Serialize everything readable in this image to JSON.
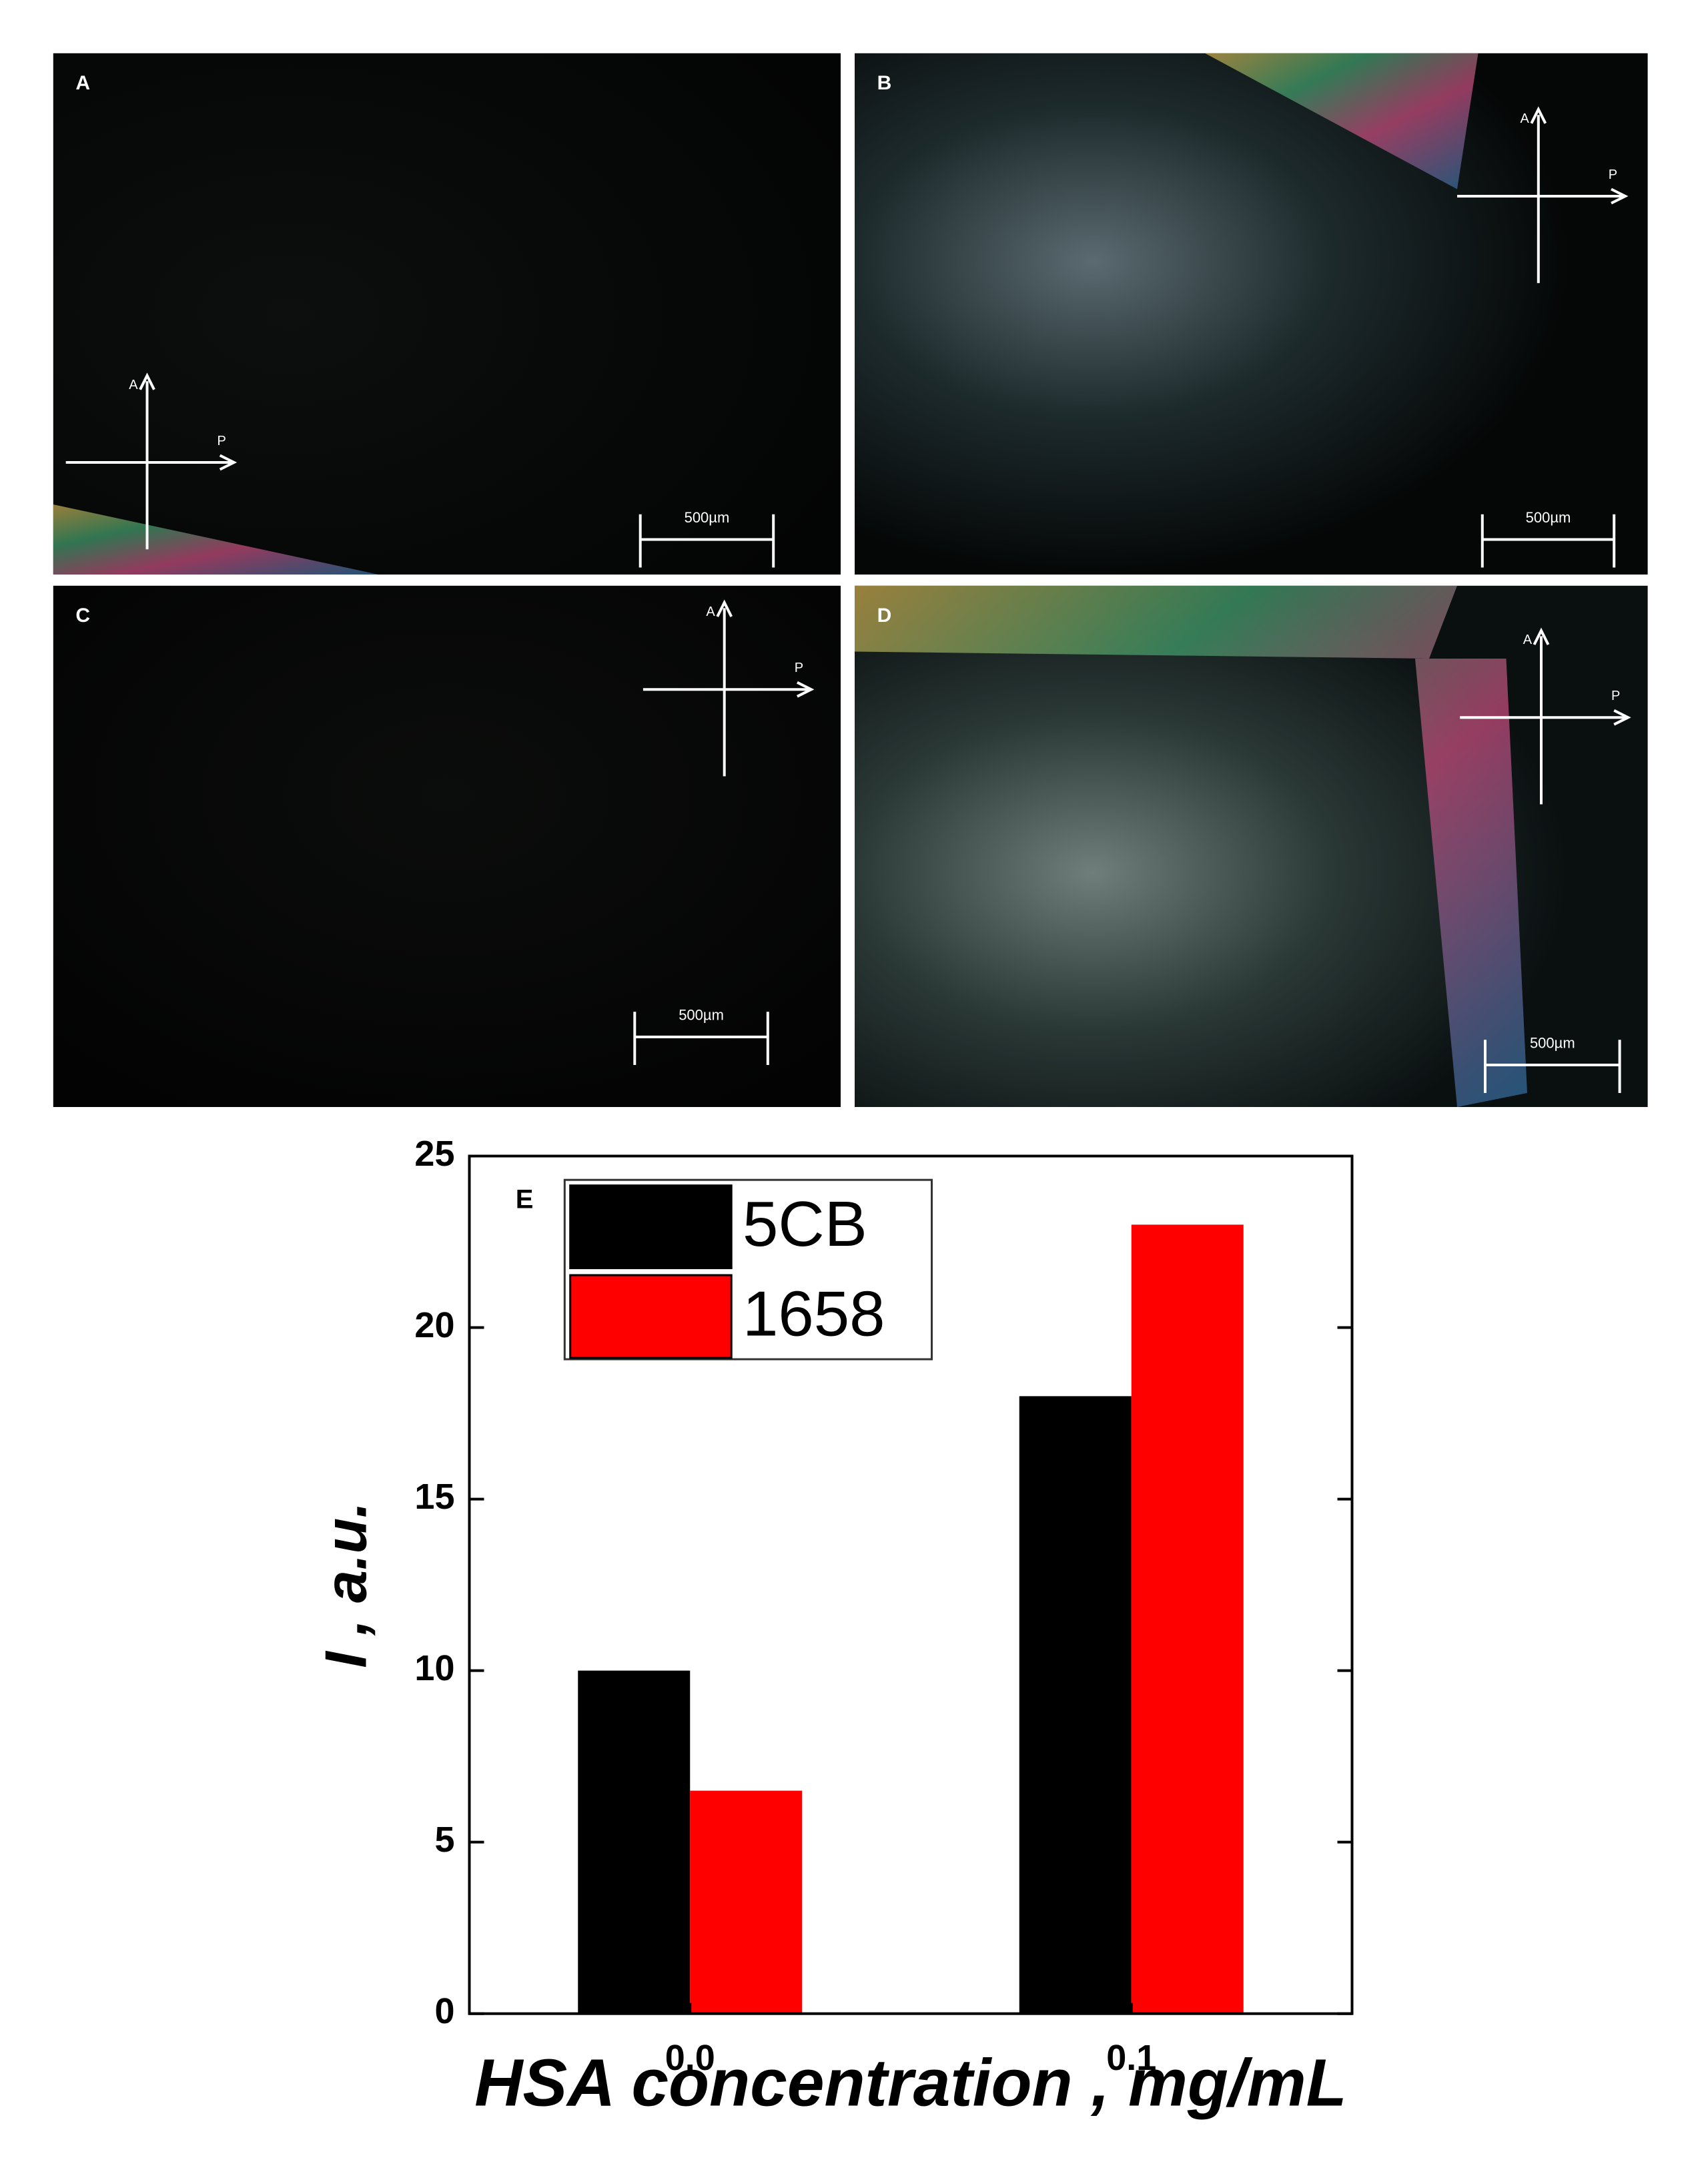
{
  "panels": [
    {
      "label": "A",
      "analyzer": "A",
      "polarizer": "P",
      "scale_bar": "500µm"
    },
    {
      "label": "B",
      "analyzer": "A",
      "polarizer": "P",
      "scale_bar": "500µm"
    },
    {
      "label": "C",
      "analyzer": "A",
      "polarizer": "P",
      "scale_bar": "500µm"
    },
    {
      "label": "D",
      "analyzer": "A",
      "polarizer": "P",
      "scale_bar": "500µm"
    }
  ],
  "chart_data": {
    "type": "bar",
    "panel_label": "E",
    "x_label": "HSA concentration ,  mg/mL",
    "y_label": "I , a.u.",
    "categories": [
      "0.0",
      "0.1"
    ],
    "series": [
      {
        "name": "5CB",
        "color": "#000000",
        "values": [
          10,
          18
        ]
      },
      {
        "name": "1658",
        "color": "#ff0000",
        "values": [
          6.5,
          23
        ]
      }
    ],
    "ylim": [
      0,
      25
    ],
    "yticks": [
      0,
      5,
      10,
      15,
      20,
      25
    ]
  }
}
